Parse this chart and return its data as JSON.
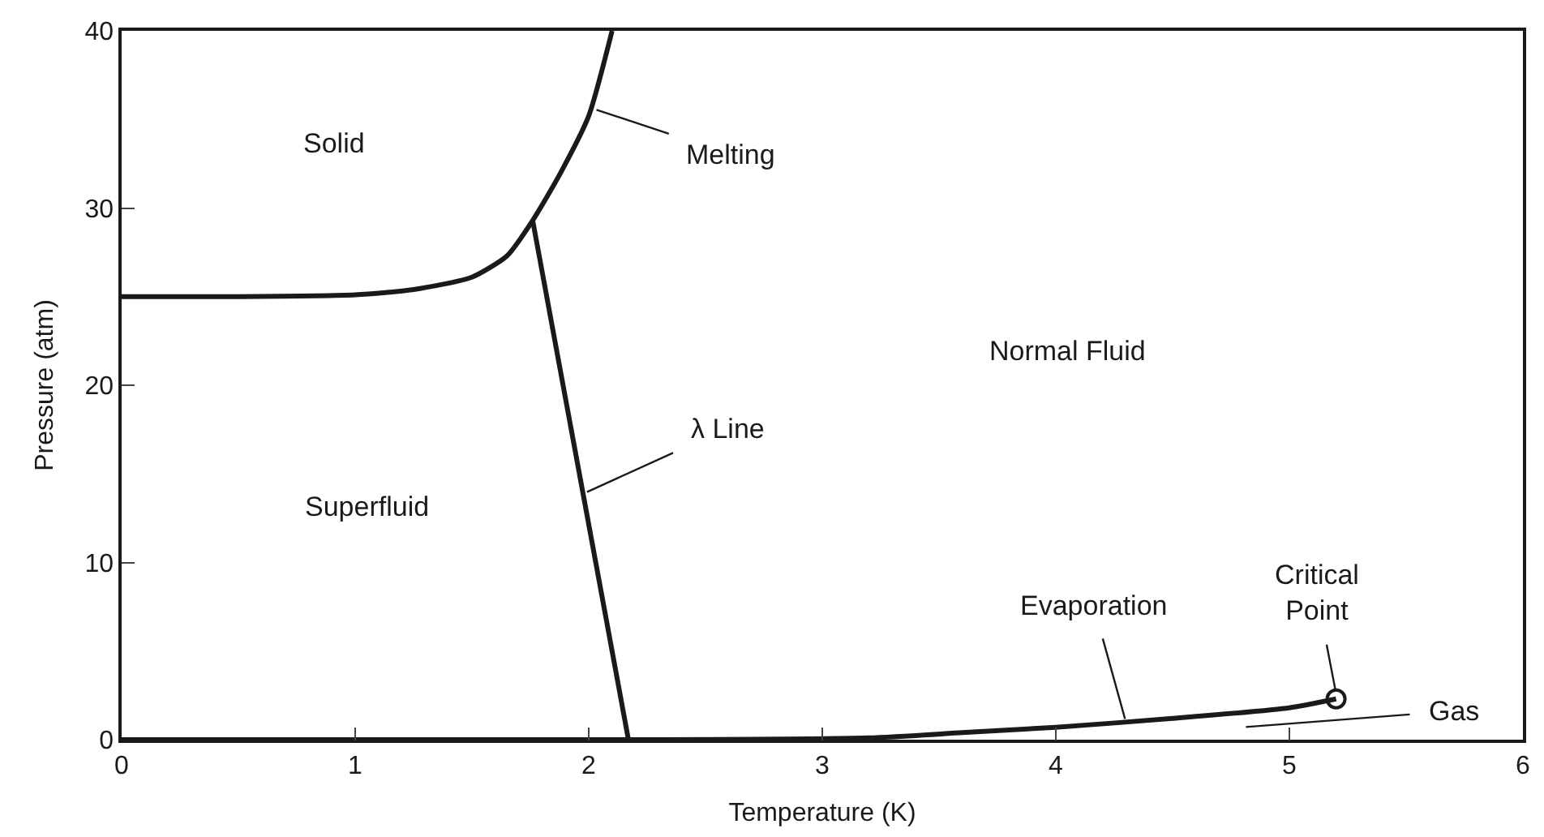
{
  "chart_data": {
    "type": "line",
    "xlabel": "Temperature (K)",
    "ylabel": "Pressure (atm)",
    "xlim": [
      0,
      6
    ],
    "ylim": [
      0,
      40
    ],
    "xticks": [
      0,
      1,
      2,
      3,
      4,
      5,
      6
    ],
    "yticks": [
      0,
      10,
      20,
      30,
      40
    ],
    "marker": "none",
    "line_style": "solid",
    "series": [
      {
        "color": "#1a1a1a",
        "x": [
          0,
          0.5,
          1.0,
          1.25,
          1.5,
          1.65,
          1.76,
          1.88,
          2.0,
          2.1
        ],
        "values": [
          25.0,
          25.0,
          25.1,
          25.4,
          26.1,
          27.3,
          29.3,
          32.0,
          35.2,
          40.0
        ]
      },
      {
        "color": "#1a1a1a",
        "x": [
          1.76,
          2.17
        ],
        "values": [
          29.3,
          0
        ]
      },
      {
        "color": "#1a1a1a",
        "x": [
          0,
          2.17,
          3.2,
          3.6,
          4.0,
          4.5,
          5.0,
          5.2
        ],
        "values": [
          0,
          0,
          0.1,
          0.4,
          0.7,
          1.2,
          1.8,
          2.3
        ]
      },
      {
        "type": "scatter",
        "marker": "circle",
        "color": "#1a1a1a",
        "x": [
          5.2
        ],
        "values": [
          2.3
        ]
      }
    ],
    "annotations": [
      "Solid",
      "Superfluid",
      "Normal Fluid",
      {
        "text": "Melting",
        "x": 2.02,
        "y": 35.6
      },
      {
        "text": "λ Line",
        "x": 1.98,
        "y": 13.9
      },
      {
        "text": "Evaporation",
        "x": 4.3,
        "y": 1.0
      },
      {
        "text": "Critical\nPoint",
        "x": 5.2,
        "y": 2.6
      },
      "Gas"
    ]
  }
}
